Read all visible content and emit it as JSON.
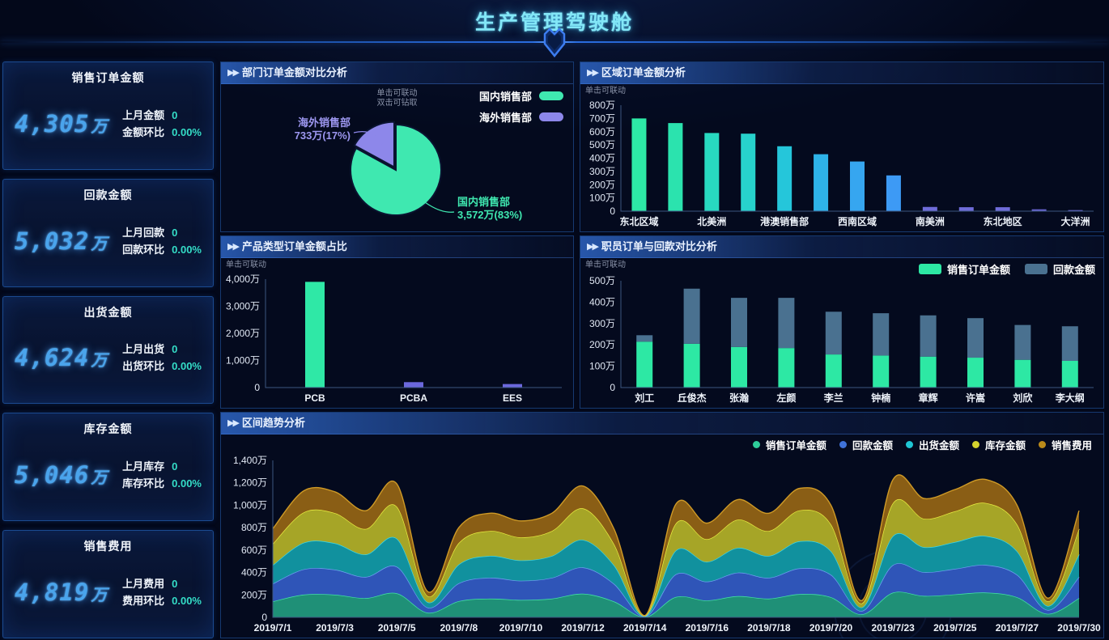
{
  "header": {
    "title": "生产管理驾驶舱"
  },
  "ui": {
    "arrows": "▶▶",
    "hint_click": "单击可联动",
    "hint_drill": "双击可钻取"
  },
  "kpi_cards": [
    {
      "title": "销售订单金额",
      "value": "4,305",
      "unit": "万",
      "rows": [
        {
          "label": "上月金额",
          "value": "0"
        },
        {
          "label": "金额环比",
          "value": "0.00%"
        }
      ]
    },
    {
      "title": "回款金额",
      "value": "5,032",
      "unit": "万",
      "rows": [
        {
          "label": "上月回款",
          "value": "0"
        },
        {
          "label": "回款环比",
          "value": "0.00%"
        }
      ]
    },
    {
      "title": "出货金额",
      "value": "4,624",
      "unit": "万",
      "rows": [
        {
          "label": "上月出货",
          "value": "0"
        },
        {
          "label": "出货环比",
          "value": "0.00%"
        }
      ]
    },
    {
      "title": "库存金额",
      "value": "5,046",
      "unit": "万",
      "rows": [
        {
          "label": "上月库存",
          "value": "0"
        },
        {
          "label": "库存环比",
          "value": "0.00%"
        }
      ]
    },
    {
      "title": "销售费用",
      "value": "4,819",
      "unit": "万",
      "rows": [
        {
          "label": "上月费用",
          "value": "0"
        },
        {
          "label": "费用环比",
          "value": "0.00%"
        }
      ]
    }
  ],
  "chart_data": [
    {
      "id": "department_pie",
      "type": "pie",
      "title": "部门订单金额对比分析",
      "legend_position": "top-right",
      "slices": [
        {
          "name": "国内销售部",
          "value_wan": 3572,
          "pct": 83,
          "label_line1": "国内销售部",
          "label_line2": "3,572万(83%)",
          "color": "#3fe8b0",
          "explode": 0
        },
        {
          "name": "海外销售部",
          "value_wan": 733,
          "pct": 17,
          "label_line1": "海外销售部",
          "label_line2": "733万(17%)",
          "color": "#8d87ea",
          "explode": 4
        }
      ]
    },
    {
      "id": "region_bar",
      "type": "bar",
      "title": "区域订单金额分析",
      "categories": [
        "东北区域",
        "",
        "北美洲",
        "",
        "港澳销售部",
        "",
        "西南区域",
        "",
        "南美洲",
        "",
        "东北地区",
        "",
        "大洋洲"
      ],
      "values": [
        700,
        665,
        590,
        585,
        490,
        430,
        375,
        270,
        32,
        30,
        30,
        14,
        8
      ],
      "colors": [
        "#2de9a6",
        "#2be3ae",
        "#28d9c0",
        "#27d2cc",
        "#25c6da",
        "#2eb3e8",
        "#36a6f0",
        "#3d9af5",
        "#6f6cd9",
        "#6f6cd9",
        "#6f6cd9",
        "#6a66d4",
        "#6a66d4"
      ],
      "ylim": [
        0,
        800
      ],
      "yticks": [
        "0",
        "100万",
        "200万",
        "300万",
        "400万",
        "500万",
        "600万",
        "700万",
        "800万"
      ]
    },
    {
      "id": "product_bar",
      "type": "bar",
      "title": "产品类型订单金额占比",
      "categories": [
        "PCB",
        "PCBA",
        "EES"
      ],
      "values": [
        3900,
        200,
        130
      ],
      "colors": [
        "#2fe8a6",
        "#6b68dc",
        "#6b68dc"
      ],
      "ylim": [
        0,
        4000
      ],
      "yticks": [
        "0",
        "1,000万",
        "2,000万",
        "3,000万",
        "4,000万"
      ]
    },
    {
      "id": "employee_stacked",
      "type": "bar",
      "stacked": true,
      "title": "职员订单与回款对比分析",
      "categories": [
        "刘工",
        "丘俊杰",
        "张瀚",
        "左颜",
        "李兰",
        "钟楠",
        "章辉",
        "许嵩",
        "刘欣",
        "李大纲"
      ],
      "series": [
        {
          "name": "销售订单金额",
          "color": "#2de8a4",
          "values": [
            215,
            205,
            190,
            185,
            155,
            150,
            145,
            140,
            130,
            125
          ]
        },
        {
          "name": "回款金额",
          "color": "#4a7190",
          "values": [
            30,
            258,
            230,
            235,
            200,
            198,
            193,
            185,
            163,
            162
          ]
        }
      ],
      "ylim": [
        0,
        500
      ],
      "yticks": [
        "0",
        "100万",
        "200万",
        "300万",
        "400万",
        "500万"
      ]
    },
    {
      "id": "trend_area",
      "type": "area",
      "title": "区间趋势分析",
      "categories": [
        "2019/7/1",
        "2019/7/2",
        "2019/7/3",
        "2019/7/4",
        "2019/7/5",
        "2019/7/6",
        "2019/7/8",
        "2019/7/9",
        "2019/7/10",
        "2019/7/11",
        "2019/7/12",
        "2019/7/13",
        "2019/7/14",
        "2019/7/15",
        "2019/7/16",
        "2019/7/17",
        "2019/7/18",
        "2019/7/19",
        "2019/7/20",
        "2019/7/21",
        "2019/7/23",
        "2019/7/24",
        "2019/7/25",
        "2019/7/26",
        "2019/7/27",
        "2019/7/28",
        "2019/7/30"
      ],
      "label_interval": 2,
      "ylim": [
        0,
        1400
      ],
      "yticks": [
        "0",
        "200万",
        "400万",
        "600万",
        "800万",
        "1,000万",
        "1,200万",
        "1,400万"
      ],
      "series": [
        {
          "name": "销售订单金额",
          "fill": "#1f9077",
          "stroke": "#43e3a4",
          "dot": "#2ecc9a",
          "values": [
            142,
            203,
            202,
            171,
            214,
            41,
            144,
            167,
            155,
            167,
            211,
            142,
            3,
            182,
            151,
            189,
            167,
            207,
            180,
            27,
            221,
            191,
            205,
            221,
            180,
            31,
            171
          ]
        },
        {
          "name": "回款金额",
          "fill": "#2f55b8",
          "stroke": "#6ea0f0",
          "dot": "#3f72d9",
          "values": [
            158,
            226,
            224,
            190,
            238,
            46,
            160,
            186,
            172,
            186,
            234,
            158,
            3,
            202,
            168,
            210,
            186,
            230,
            200,
            30,
            246,
            212,
            228,
            246,
            200,
            34,
            190
          ]
        },
        {
          "name": "出货金额",
          "fill": "#11919e",
          "stroke": "#3bd6e8",
          "dot": "#1fc6d4",
          "values": [
            166,
            237,
            235,
            200,
            250,
            48,
            168,
            195,
            181,
            195,
            246,
            166,
            3,
            212,
            176,
            221,
            195,
            242,
            210,
            32,
            258,
            223,
            239,
            258,
            210,
            36,
            200
          ]
        },
        {
          "name": "库存金额",
          "fill": "#a6a527",
          "stroke": "#e8ec40",
          "dot": "#d4d22e",
          "values": [
            190,
            271,
            269,
            228,
            286,
            55,
            192,
            223,
            206,
            223,
            281,
            190,
            4,
            242,
            202,
            252,
            223,
            276,
            240,
            36,
            295,
            254,
            274,
            295,
            240,
            41,
            228
          ]
        },
        {
          "name": "销售费用",
          "fill": "#8a5e15",
          "stroke": "#cf9a26",
          "dot": "#bb8b1a",
          "values": [
            134,
            192,
            190,
            162,
            202,
            39,
            136,
            158,
            146,
            158,
            199,
            134,
            3,
            172,
            143,
            179,
            158,
            196,
            170,
            26,
            209,
            180,
            194,
            209,
            170,
            29,
            162
          ]
        }
      ]
    }
  ]
}
